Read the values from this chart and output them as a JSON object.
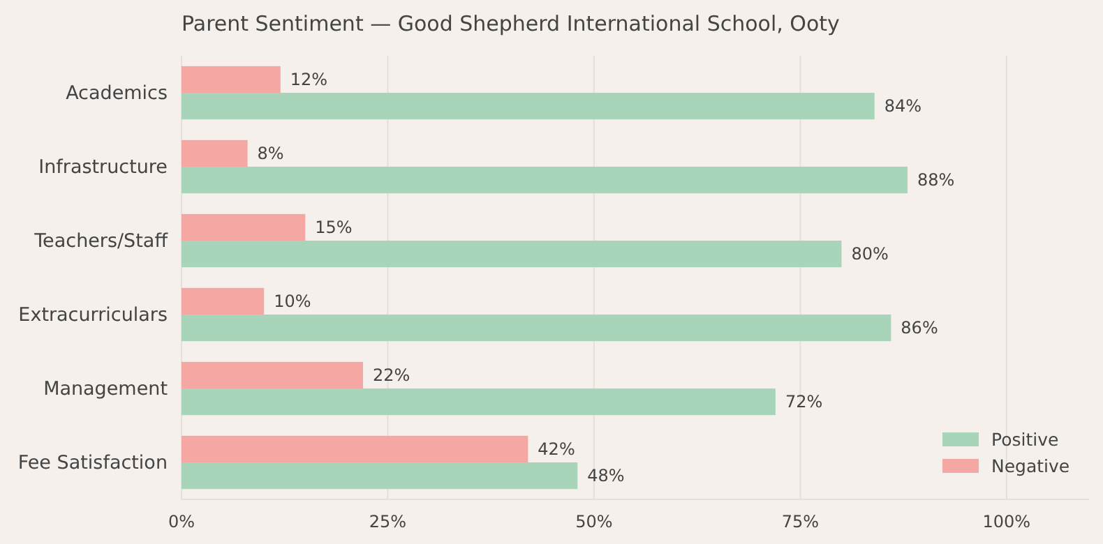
{
  "chart_data": {
    "type": "bar",
    "orientation": "horizontal",
    "title": "Parent Sentiment — Good Shepherd International School, Ooty",
    "categories": [
      "Academics",
      "Infrastructure",
      "Teachers/Staff",
      "Extracurriculars",
      "Management",
      "Fee Satisfaction"
    ],
    "series": [
      {
        "name": "Negative",
        "color": "#f4a7a3",
        "values": [
          12,
          8,
          15,
          10,
          22,
          42
        ],
        "value_labels": [
          "12%",
          "8%",
          "15%",
          "10%",
          "22%",
          "42%"
        ]
      },
      {
        "name": "Positive",
        "color": "#a8d5ba",
        "values": [
          84,
          88,
          80,
          86,
          72,
          48
        ],
        "value_labels": [
          "84%",
          "88%",
          "80%",
          "86%",
          "72%",
          "48%"
        ]
      }
    ],
    "xlim": [
      0,
      110
    ],
    "xticks": [
      {
        "value": 0,
        "label": "0%"
      },
      {
        "value": 25,
        "label": "25%"
      },
      {
        "value": 50,
        "label": "50%"
      },
      {
        "value": 75,
        "label": "75%"
      },
      {
        "value": 100,
        "label": "100%"
      }
    ],
    "grid": "x",
    "legend": "bottom right"
  }
}
